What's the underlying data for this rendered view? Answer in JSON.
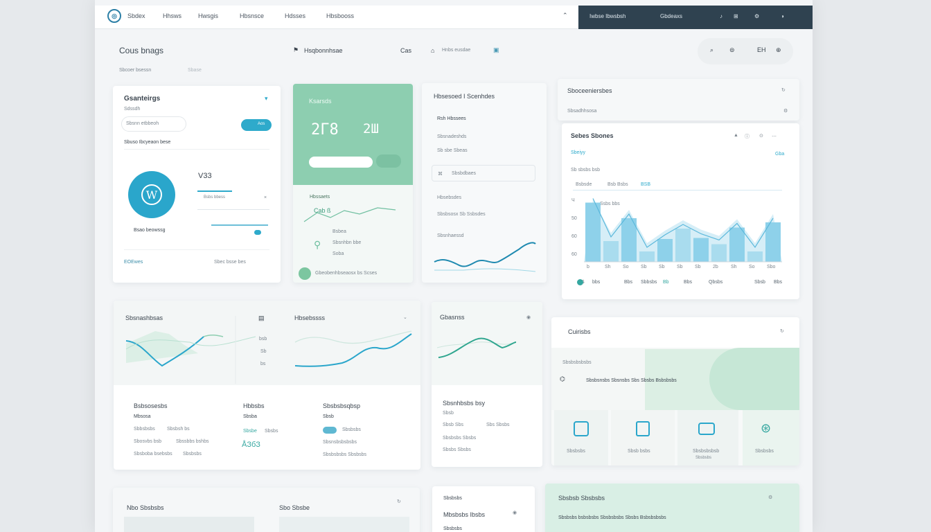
{
  "topbar": {
    "nav": [
      "Sbdex",
      "Hhsws",
      "Hwsgis",
      "Hbsnsce",
      "Hdsses",
      "Hbsbooss"
    ],
    "right": [
      "Iwbse Ibwsbsh",
      "Gbdeaxs"
    ]
  },
  "header": {
    "title": "Cous bnags",
    "subtitle": "Sbcoer bsessn",
    "sub2": "Sbase",
    "center_title": "Hsqbonnhsae",
    "center_b": "Cas",
    "center_c": "Hnbs eusdae",
    "right_c": "EH"
  },
  "profile": {
    "title": "Gsanteirgs",
    "sub": "Sdssdh",
    "field_placeholder": "Sbsnn etbbeoh",
    "toggle_label": "Aos",
    "desc": "Sbuso Ibcyeaon bese",
    "avatar_letter": "W",
    "amount": "V33",
    "bars_label": "Bsbs bbess",
    "name": "Bsao beowssg",
    "footer_a": "EOEwes",
    "footer_b": "Sbec bsse bes"
  },
  "green": {
    "title": "Ksarsds",
    "big1": "2Г8",
    "big2": "2Ш",
    "label1": "Hbssaets",
    "val": "Cab ß",
    "lbl2": "Bsbea",
    "lbl3": "Sbsnhbn bbe",
    "lbl4": "Soba",
    "footer": "Gbeobenhbseaosx bs Scses"
  },
  "detail": {
    "title": "Hbsesoed I Scenhdes",
    "sub1": "Rsh Hbssees",
    "sub2": "Sbsnadeshds",
    "sub3": "Sb sbe Sbeas",
    "input": "Sbsbdbaes",
    "sub4": "Hbsebsdes",
    "sub5": "Sbsbsosx Sb Ssbsdes",
    "sub6": "Sbsnhaessd"
  },
  "chartcard": {
    "head": "Sboceeniersbes",
    "head_sub": "Sbsadhhsosa",
    "title": "Sebes Sbones",
    "legend_a": "Sbeiyy",
    "tag": "Gba",
    "sub": "Sb sbsbs bsb",
    "cols": [
      "Bsbsde",
      "Bsb Bsbs",
      "BSB"
    ],
    "chart_label": "Ssbs bbs",
    "y": [
      "Ч",
      "50",
      "60",
      "60"
    ],
    "x": [
      "b",
      "Sh",
      "So",
      "Sb",
      "Sb",
      "Sb",
      "Sb",
      "2b",
      "Sh",
      "So",
      "Sbo"
    ],
    "foot": [
      "S",
      "bbs",
      "Bbs",
      "Sbbsbs",
      "Bb",
      "Bbs",
      "Qbsbs",
      "Sbsb",
      "Bbs"
    ]
  },
  "mid": {
    "a_title": "Sbsnashbsas",
    "b_title": "Hbsebssss",
    "c_title": "Gbasnss",
    "ticks": [
      "bsb",
      "Sb",
      "bs"
    ],
    "col1": [
      "Bsbsosesbs",
      "Mbsosa",
      "Sbbsbsbs",
      "Sbsbsh bs",
      "Sbosvbs bsb",
      "Sbssbbs bshbs",
      "Sbsboba bsebsbs",
      "Sbsbsbs"
    ],
    "col2": [
      "Hbbsbs",
      "Sbsba",
      "Sbsbe",
      "Sbsbs",
      "ÅЗбЗ"
    ],
    "col3": [
      "Sbsbsbsqbsp",
      "Sbsb",
      "Sbsbsbs",
      "Sbsnsbsbsbsbs",
      "Sbsbsbsbs Sbsbsbs"
    ],
    "c_list": [
      "Sbsnhbsbs bsy",
      "Sbsb",
      "Sbsb Sbs",
      "Sbs Sbsbs",
      "Sbsbsbs Sbsbs",
      "Sbsbs Sbsbs"
    ]
  },
  "right_mid": {
    "title": "Cuirisbs",
    "sub": "Sbsbsbsbsbs",
    "line": "Sbsbsnsbs Sbsnsbs Sbs Sbsbs Bsbsbsbs",
    "tiles": [
      "Sbsbsbs",
      "Sbsb bsbs",
      "Sbsbsbsbsb",
      "Sbsbsbs"
    ],
    "tile_sub": "Sbsbsbs"
  },
  "bottom": {
    "a": "Nbo Sbsbsbs",
    "b": "Sbo Sbsbe",
    "c": "Sbsbsbs",
    "c2": "Mbsbsbs Ibsbs",
    "c3": "Sbsbsbs",
    "d": "Sbsbsb Sbsbsbs",
    "d2": "Sbsbsbs bsbsbsbs Sbsbsbsbs Sbsbs Bsbsbsbsbs"
  },
  "colors": {
    "accent": "#2eaacb",
    "green": "#8dceb0",
    "dark": "#2f4250",
    "teal": "#35a7a0"
  },
  "chart_data": {
    "type": "bar",
    "categories": [
      "b",
      "Sh",
      "So",
      "Sb",
      "Sb",
      "Sb",
      "Sb",
      "2b",
      "Sh",
      "So",
      "Sbo"
    ],
    "values": [
      57,
      20,
      42,
      10,
      22,
      32,
      23,
      17,
      33,
      10,
      38
    ],
    "ylim": [
      0,
      60
    ]
  }
}
